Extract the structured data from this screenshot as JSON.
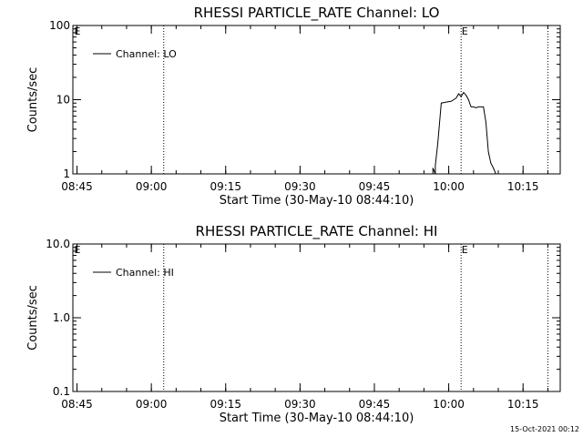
{
  "footer": {
    "date": "15-Oct-2021 00:12"
  },
  "chart_data": [
    {
      "type": "line",
      "title": "RHESSI PARTICLE_RATE Channel: LO",
      "xlabel": "Start Time (30-May-10 08:44:10)",
      "ylabel": "Counts/sec",
      "yscale": "log",
      "ylim": [
        1,
        100
      ],
      "xlim": [
        "08:44:10",
        "10:22:30"
      ],
      "x_ticks": [
        "08:45",
        "09:00",
        "09:15",
        "09:30",
        "09:45",
        "10:00",
        "10:15"
      ],
      "y_ticks": [
        "1",
        "10",
        "100"
      ],
      "legend": {
        "position": "top-left",
        "entries": [
          "Channel: LO"
        ]
      },
      "vlines": [
        {
          "time": "09:02:30",
          "label": ""
        },
        {
          "time": "10:02:30",
          "label": "E"
        },
        {
          "time": "10:20:00",
          "label": ""
        }
      ],
      "corner_marker": "E",
      "series": [
        {
          "name": "Channel: LO",
          "x": [
            "09:56:48",
            "09:56:48",
            "09:57:18",
            "09:57:18",
            "09:57:48",
            "09:58:30",
            "09:59:30",
            "10:00:30",
            "10:01:00",
            "10:01:30",
            "10:02:00",
            "10:02:30",
            "10:03:00",
            "10:03:30",
            "10:04:00",
            "10:04:30",
            "10:05:00",
            "10:05:30",
            "10:06:00",
            "10:06:30",
            "10:07:00",
            "10:07:30",
            "10:08:00",
            "10:08:30",
            "10:09:00",
            "10:09:30"
          ],
          "y": [
            1.0,
            1.2,
            1.0,
            1.3,
            2.6,
            9.0,
            9.3,
            9.5,
            10.0,
            10.5,
            12.0,
            11.0,
            12.5,
            11.5,
            10.0,
            8.0,
            8.0,
            7.8,
            8.0,
            8.0,
            8.0,
            5.0,
            2.0,
            1.4,
            1.2,
            1.0
          ]
        }
      ]
    },
    {
      "type": "line",
      "title": "RHESSI PARTICLE_RATE Channel: HI",
      "xlabel": "Start Time (30-May-10 08:44:10)",
      "ylabel": "Counts/sec",
      "yscale": "log",
      "ylim": [
        0.1,
        10
      ],
      "xlim": [
        "08:44:10",
        "10:22:30"
      ],
      "x_ticks": [
        "08:45",
        "09:00",
        "09:15",
        "09:30",
        "09:45",
        "10:00",
        "10:15"
      ],
      "y_ticks": [
        "0.1",
        "1.0",
        "10.0"
      ],
      "legend": {
        "position": "top-left",
        "entries": [
          "Channel: HI"
        ]
      },
      "vlines": [
        {
          "time": "09:02:30",
          "label": ""
        },
        {
          "time": "10:02:30",
          "label": "E"
        },
        {
          "time": "10:20:00",
          "label": ""
        }
      ],
      "corner_marker": "E",
      "series": [
        {
          "name": "Channel: HI",
          "x": [],
          "y": []
        }
      ]
    }
  ]
}
